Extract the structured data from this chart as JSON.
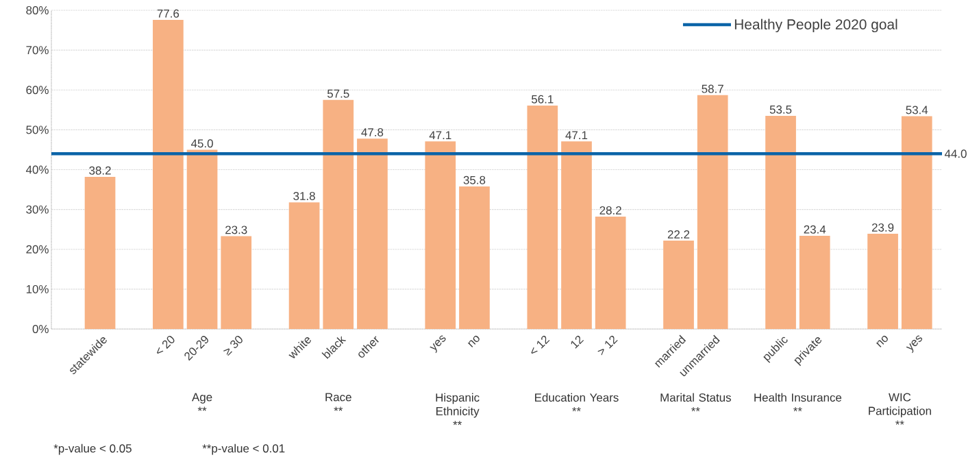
{
  "chart_data": {
    "type": "bar",
    "categories": [
      "statewide",
      null,
      "< 20",
      "20-29",
      "≥ 30",
      null,
      "white",
      "black",
      "other",
      null,
      "yes",
      "no",
      null,
      "< 12",
      "12",
      "> 12",
      null,
      "married",
      "unmarried",
      null,
      "public",
      "private",
      null,
      "no",
      "yes"
    ],
    "values": [
      38.2,
      null,
      77.6,
      45.0,
      23.3,
      null,
      31.8,
      57.5,
      47.8,
      null,
      47.1,
      35.8,
      null,
      56.1,
      47.1,
      28.2,
      null,
      22.2,
      58.7,
      null,
      53.5,
      23.4,
      null,
      23.9,
      53.4
    ],
    "value_labels": [
      "38.2",
      null,
      "77.6",
      "45.0",
      "23.3",
      null,
      "31.8",
      "57.5",
      "47.8",
      null,
      "47.1",
      "35.8",
      null,
      "56.1",
      "47.1",
      "28.2",
      null,
      "22.2",
      "58.7",
      null,
      "53.5",
      "23.4",
      null,
      "23.9",
      "53.4"
    ],
    "color": "#f7b183",
    "ylim": [
      0,
      80
    ],
    "yticks": [
      {
        "value": 0,
        "label": "0%"
      },
      {
        "value": 10,
        "label": "10%"
      },
      {
        "value": 20,
        "label": "20%"
      },
      {
        "value": 30,
        "label": "30%"
      },
      {
        "value": 40,
        "label": "40%"
      },
      {
        "value": 50,
        "label": "50%"
      },
      {
        "value": 60,
        "label": "60%"
      },
      {
        "value": 70,
        "label": "70%"
      },
      {
        "value": 80,
        "label": "80%"
      }
    ],
    "grid": "y",
    "legend": "top right",
    "ref_lines": [
      {
        "axis": "y",
        "value": 44.0,
        "label": "Healthy People 2020 goal",
        "color": "#0b64a8"
      }
    ],
    "annotations": [
      "Age",
      "**",
      "Race",
      "**",
      "Hispanic Ethnicity",
      "**",
      "Education Years",
      "**",
      "Marital Status",
      "**",
      "Health Insurance",
      "**",
      "WIC Participation",
      "**",
      "44.0",
      "*p-value < 0.05",
      "**p-value < 0.01"
    ]
  }
}
